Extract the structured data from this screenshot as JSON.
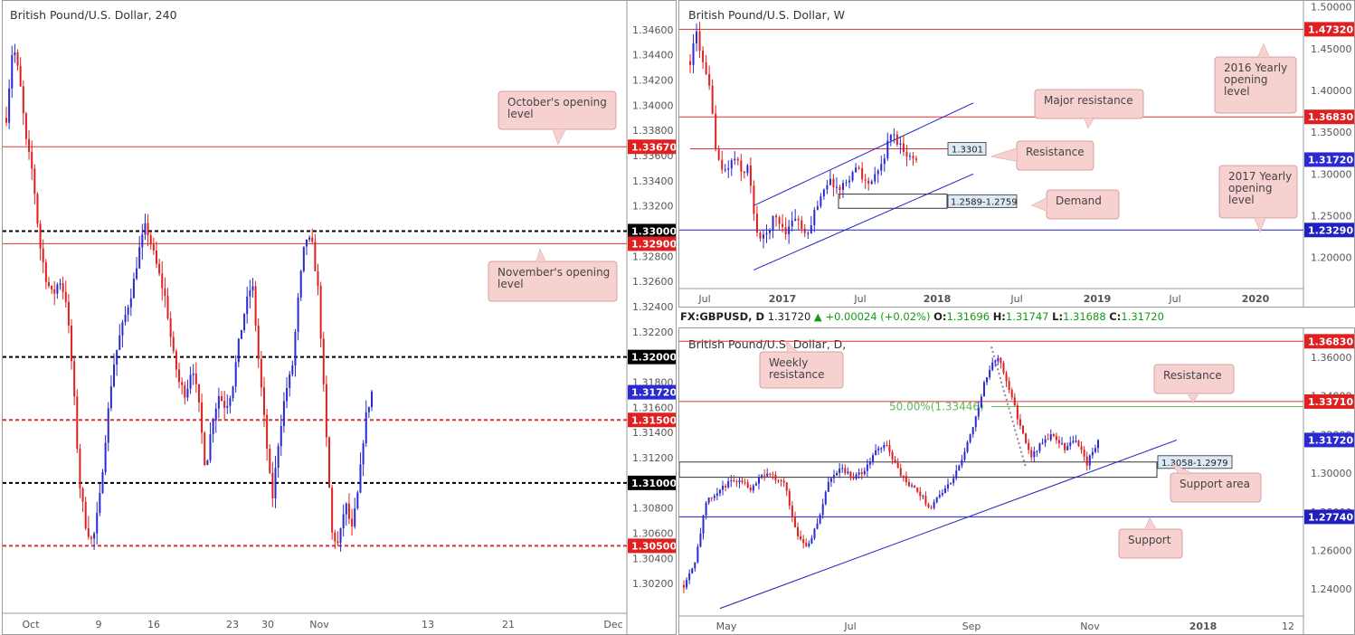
{
  "chart_data": [
    {
      "id": "h4",
      "type": "candlestick",
      "title": "British Pound/U.S. Dollar, 240",
      "ylim": [
        1.3,
        1.348
      ],
      "y_ticks": [
        "1.34600",
        "1.34400",
        "1.34200",
        "1.34000",
        "1.33800",
        "1.33600",
        "1.33400",
        "1.33200",
        "1.32800",
        "1.32600",
        "1.32400",
        "1.32200",
        "1.31800",
        "1.31600",
        "1.31400",
        "1.31200",
        "1.30800",
        "1.30600",
        "1.30400",
        "1.30200"
      ],
      "x_ticks": [
        "Oct",
        "9",
        "16",
        "23",
        "30",
        "Nov",
        "13",
        "21",
        "Dec"
      ],
      "last_price": "1.31720",
      "levels": [
        {
          "value": 1.3367,
          "label": "1.33670",
          "style": "solid",
          "color": "#e03030"
        },
        {
          "value": 1.33,
          "label": "1.33000",
          "style": "dashed",
          "color": "#000000"
        },
        {
          "value": 1.329,
          "label": "1.32900",
          "style": "solid",
          "color": "#e03030"
        },
        {
          "value": 1.32,
          "label": "1.32000",
          "style": "dashed",
          "color": "#000000"
        },
        {
          "value": 1.315,
          "label": "1.31500",
          "style": "dashed",
          "color": "#e03030"
        },
        {
          "value": 1.31,
          "label": "1.31000",
          "style": "dashed",
          "color": "#000000"
        },
        {
          "value": 1.305,
          "label": "1.30500",
          "style": "dashed",
          "color": "#e03030"
        }
      ],
      "annotations": [
        "October's opening level",
        "November's opening level"
      ],
      "series_path": [
        [
          0,
          1.339
        ],
        [
          1,
          1.345
        ],
        [
          2,
          1.342
        ],
        [
          3,
          1.337
        ],
        [
          4,
          1.3345
        ],
        [
          5,
          1.329
        ],
        [
          6,
          1.3262
        ],
        [
          7,
          1.3248
        ],
        [
          8,
          1.3262
        ],
        [
          9,
          1.3245
        ],
        [
          10,
          1.3185
        ],
        [
          11,
          1.31
        ],
        [
          12,
          1.3065
        ],
        [
          13,
          1.3052
        ],
        [
          14,
          1.3085
        ],
        [
          15,
          1.314
        ],
        [
          16,
          1.319
        ],
        [
          17,
          1.3215
        ],
        [
          18,
          1.3235
        ],
        [
          19,
          1.3255
        ],
        [
          20,
          1.3285
        ],
        [
          21,
          1.3305
        ],
        [
          22,
          1.3285
        ],
        [
          23,
          1.3265
        ],
        [
          24,
          1.3245
        ],
        [
          25,
          1.3205
        ],
        [
          26,
          1.318
        ],
        [
          27,
          1.317
        ],
        [
          28,
          1.3195
        ],
        [
          29,
          1.316
        ],
        [
          30,
          1.311
        ],
        [
          31,
          1.315
        ],
        [
          32,
          1.317
        ],
        [
          33,
          1.316
        ],
        [
          34,
          1.3175
        ],
        [
          35,
          1.3212
        ],
        [
          36,
          1.324
        ],
        [
          37,
          1.326
        ],
        [
          38,
          1.3195
        ],
        [
          39,
          1.314
        ],
        [
          40,
          1.3085
        ],
        [
          41,
          1.3135
        ],
        [
          42,
          1.3172
        ],
        [
          43,
          1.319
        ],
        [
          44,
          1.325
        ],
        [
          45,
          1.3295
        ],
        [
          46,
          1.329
        ],
        [
          47,
          1.325
        ],
        [
          48,
          1.315
        ],
        [
          49,
          1.306
        ],
        [
          50,
          1.305
        ],
        [
          51,
          1.3085
        ],
        [
          52,
          1.3062
        ],
        [
          53,
          1.3095
        ],
        [
          54,
          1.315
        ],
        [
          55,
          1.3172
        ]
      ]
    },
    {
      "id": "weekly",
      "type": "candlestick",
      "title": "British Pound/U.S. Dollar, W",
      "ylim": [
        1.165,
        1.505
      ],
      "y_ticks": [
        "1.50000",
        "1.45000",
        "1.40000",
        "1.35000",
        "1.30000",
        "1.25000",
        "1.20000"
      ],
      "x_ticks": [
        "Jul",
        "2017",
        "Jul",
        "2018",
        "Jul",
        "2019",
        "Jul",
        "2020"
      ],
      "last_price": "1.31720",
      "levels": [
        {
          "value": 1.4732,
          "label": "1.47320",
          "color": "#e03030"
        },
        {
          "value": 1.3683,
          "label": "1.36830",
          "color": "#e03030"
        },
        {
          "value": 1.3301,
          "label": "1.3301",
          "color": "#e03030"
        },
        {
          "value": 1.2329,
          "label": "1.23290",
          "color": "#2020c0"
        }
      ],
      "demand_zone": "1.2589-1.2759",
      "annotations": [
        "2016 Yearly opening level",
        "Major resistance",
        "Resistance",
        "Demand",
        "2017 Yearly opening level"
      ]
    },
    {
      "id": "daily",
      "type": "candlestick",
      "title": "British Pound/U.S. Dollar, D,",
      "ylim": [
        1.227,
        1.375
      ],
      "y_ticks": [
        "1.36000",
        "1.34000",
        "1.32000",
        "1.30000",
        "1.28000",
        "1.26000",
        "1.24000"
      ],
      "x_ticks": [
        "May",
        "Jul",
        "Sep",
        "Nov",
        "2018",
        "12"
      ],
      "last_price": "1.31720",
      "levels": [
        {
          "value": 1.3683,
          "label": "1.36830",
          "color": "#e03030"
        },
        {
          "value": 1.3371,
          "label": "1.33710",
          "color": "#e03030"
        },
        {
          "value": 1.33446,
          "label": "50.00%(1.33446)",
          "color": "#60c060"
        },
        {
          "value": 1.2774,
          "label": "1.27740",
          "color": "#2020c0"
        }
      ],
      "support_area": "1.3058-1.2979",
      "annotations": [
        "Weekly resistance",
        "Resistance",
        "Support area",
        "Support"
      ]
    }
  ],
  "ohlc_header": {
    "symbol": "FX:GBPUSD, D",
    "close": "1.31720",
    "change": "+0.00024 (+0.02%)",
    "o_label": "O:",
    "o": "1.31696",
    "h_label": "H:",
    "h": "1.31747",
    "l_label": "L:",
    "l": "1.31688",
    "c_label": "C:",
    "c": "1.31720"
  },
  "colors": {
    "bull": "#2a2ad0",
    "bear": "#e02020",
    "level_red": "#e03030",
    "level_blue": "#2020c0",
    "bubble_bg": "#f7d0d0",
    "bubble_border": "#d9a0a0"
  }
}
